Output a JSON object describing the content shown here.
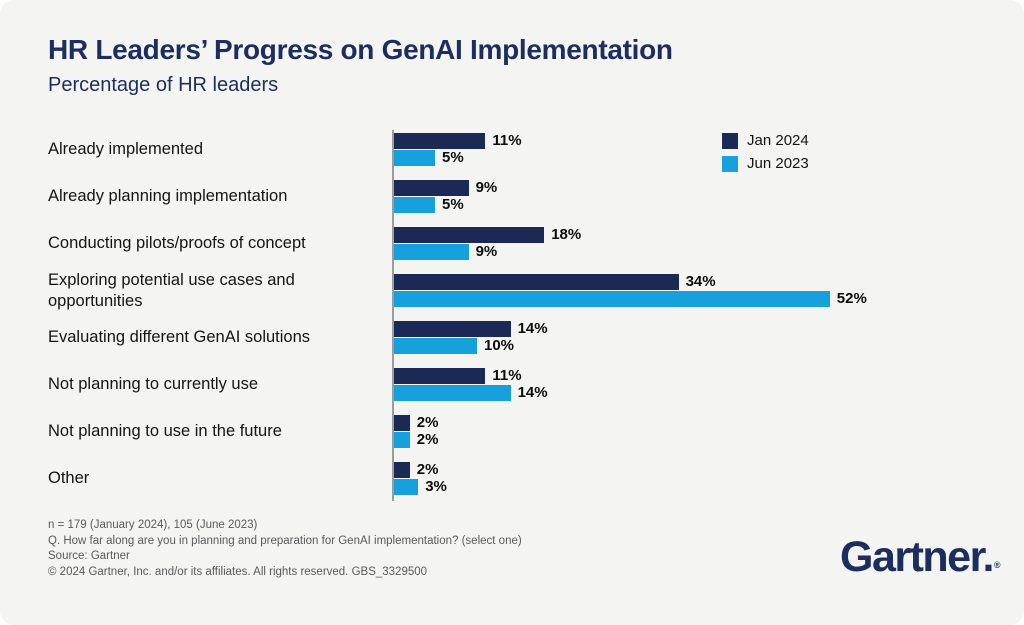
{
  "header": {
    "title": "HR Leaders’ Progress on GenAI Implementation",
    "subtitle": "Percentage of HR leaders"
  },
  "colors": {
    "navy": "#1c2d5e",
    "bar_jan2024": "#1b2a55",
    "bar_jun2023": "#17a1dc",
    "card_background": "#f4f4f2",
    "footnote_gray": "#58595b"
  },
  "chart_data": {
    "type": "bar",
    "orientation": "horizontal",
    "title": "HR Leaders’ Progress on GenAI Implementation",
    "subtitle": "Percentage of HR leaders",
    "categories": [
      "Already implemented",
      "Already planning implementation",
      "Conducting pilots/proofs of concept",
      "Exploring potential use cases and opportunities",
      "Evaluating different GenAI solutions",
      "Not planning to currently use",
      "Not planning to use in the future",
      "Other"
    ],
    "series": [
      {
        "name": "Jan 2024",
        "color": "#1b2a55",
        "values": [
          11,
          9,
          18,
          34,
          14,
          11,
          2,
          2
        ]
      },
      {
        "name": "Jun 2023",
        "color": "#17a1dc",
        "values": [
          5,
          5,
          9,
          52,
          10,
          14,
          2,
          3
        ]
      }
    ],
    "value_suffix": "%",
    "xlim": [
      0,
      55
    ],
    "grid": false,
    "legend_position": "top-right",
    "data_labels": true
  },
  "footer": {
    "notes": [
      "n = 179 (January 2024), 105 (June 2023)",
      "Q. How far along are you in planning and preparation for GenAI implementation? (select one)",
      "Source: Gartner",
      "© 2024 Gartner, Inc. and/or its affiliates. All rights reserved. GBS_3329500"
    ],
    "logo_text": "Gartner.",
    "registered_mark": "®"
  }
}
